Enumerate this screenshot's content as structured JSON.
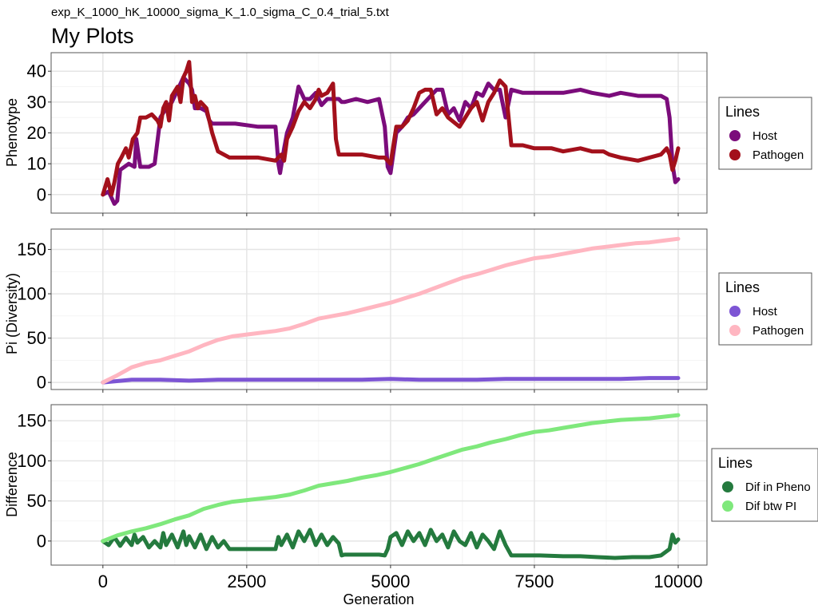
{
  "subtitle": "exp_K_1000_hK_10000_sigma_K_1.0_sigma_C_0.4_trial_5.txt",
  "title": "My Plots",
  "xlabel": "Generation",
  "chart_data": [
    {
      "type": "line",
      "ylabel": "Phenotype",
      "xlim": [
        -900,
        10500
      ],
      "ylim": [
        -6,
        46
      ],
      "xticks": [
        0,
        2500,
        5000,
        7500,
        10000
      ],
      "yticks": [
        0,
        10,
        20,
        30,
        40
      ],
      "ytick_labels": [
        "0",
        "10",
        "20",
        "30",
        "40"
      ],
      "legend": {
        "title": "Lines",
        "position": "right"
      },
      "series": [
        {
          "name": "Host",
          "color": "#7b0c7b",
          "x": [
            0,
            100,
            200,
            250,
            300,
            450,
            550,
            580,
            650,
            800,
            900,
            1000,
            1100,
            1200,
            1300,
            1400,
            1500,
            1550,
            1600,
            1700,
            1800,
            1850,
            1900,
            2000,
            2300,
            2700,
            3000,
            3050,
            3080,
            3150,
            3200,
            3300,
            3350,
            3400,
            3500,
            3600,
            3700,
            3800,
            3900,
            4000,
            4100,
            4150,
            4200,
            4400,
            4600,
            4800,
            4900,
            4950,
            5000,
            5100,
            5200,
            5300,
            5400,
            5500,
            5600,
            5700,
            5800,
            5900,
            6000,
            6100,
            6200,
            6300,
            6400,
            6500,
            6600,
            6700,
            6800,
            6900,
            7000,
            7100,
            7300,
            7500,
            7800,
            8000,
            8300,
            8500,
            8800,
            9000,
            9300,
            9500,
            9700,
            9800,
            9850,
            9900,
            9950,
            10000
          ],
          "y": [
            0,
            1,
            -3,
            -2,
            8,
            10,
            9,
            18,
            9,
            9,
            10,
            25,
            28,
            30,
            34,
            38,
            36,
            34,
            28,
            28,
            27,
            24,
            23,
            23,
            23,
            22,
            22,
            10,
            7,
            15,
            20,
            25,
            30,
            35,
            31,
            31,
            33,
            29,
            31,
            31,
            31,
            30,
            30,
            31,
            30,
            31,
            22,
            9,
            7,
            20,
            22,
            25,
            26,
            28,
            30,
            32,
            34,
            34,
            26,
            28,
            24,
            30,
            28,
            33,
            32,
            36,
            34,
            34,
            25,
            34,
            33,
            33,
            33,
            33,
            34,
            33,
            32,
            33,
            32,
            32,
            32,
            31,
            25,
            10,
            4,
            5
          ]
        },
        {
          "name": "Pathogen",
          "color": "#a3101b",
          "x": [
            0,
            80,
            150,
            200,
            260,
            320,
            400,
            450,
            520,
            600,
            650,
            750,
            850,
            950,
            1000,
            1050,
            1100,
            1150,
            1200,
            1300,
            1350,
            1400,
            1450,
            1500,
            1550,
            1600,
            1650,
            1700,
            1800,
            1900,
            2000,
            2200,
            2400,
            2700,
            3000,
            3100,
            3150,
            3200,
            3300,
            3400,
            3500,
            3600,
            3700,
            3750,
            3800,
            3900,
            4000,
            4050,
            4100,
            4200,
            4500,
            4800,
            4900,
            4950,
            5000,
            5100,
            5200,
            5300,
            5400,
            5500,
            5600,
            5700,
            5800,
            5900,
            6000,
            6200,
            6400,
            6500,
            6600,
            6700,
            6800,
            6900,
            7000,
            7100,
            7300,
            7500,
            7800,
            8000,
            8300,
            8500,
            8700,
            8800,
            9000,
            9300,
            9500,
            9700,
            9800,
            9850,
            9900,
            9950,
            10000
          ],
          "y": [
            0,
            5,
            0,
            4,
            10,
            12,
            15,
            12,
            18,
            20,
            25,
            25,
            26,
            24,
            22,
            28,
            30,
            24,
            32,
            35,
            30,
            38,
            40,
            43,
            30,
            32,
            28,
            30,
            28,
            20,
            14,
            12,
            12,
            12,
            11,
            13,
            11,
            18,
            22,
            27,
            30,
            28,
            31,
            34,
            32,
            33,
            36,
            18,
            13,
            13,
            13,
            12,
            12,
            11,
            10,
            22,
            22,
            24,
            28,
            33,
            34,
            34,
            26,
            28,
            25,
            22,
            28,
            30,
            24,
            30,
            33,
            37,
            35,
            16,
            16,
            15,
            15,
            14,
            15,
            14,
            14,
            13,
            12,
            11,
            12,
            13,
            15,
            13,
            8,
            11,
            15
          ]
        }
      ]
    },
    {
      "type": "line",
      "ylabel": "Pi (Diversity)",
      "xlim": [
        -900,
        10500
      ],
      "ylim": [
        -8,
        173
      ],
      "xticks": [
        0,
        2500,
        5000,
        7500,
        10000
      ],
      "yticks": [
        0,
        50,
        100,
        150
      ],
      "ytick_labels": [
        "0",
        "50",
        "100",
        "150"
      ],
      "legend": {
        "title": "Lines",
        "position": "right"
      },
      "series": [
        {
          "name": "Host",
          "color": "#7d55d4",
          "x": [
            0,
            500,
            1000,
            1500,
            2000,
            2500,
            3000,
            3500,
            4000,
            4500,
            5000,
            5500,
            6000,
            6500,
            7000,
            7500,
            8000,
            8500,
            9000,
            9500,
            10000
          ],
          "y": [
            0,
            3,
            3,
            2,
            3,
            3,
            3,
            3,
            3,
            3,
            4,
            3,
            3,
            3,
            4,
            4,
            4,
            4,
            4,
            5,
            5
          ]
        },
        {
          "name": "Pathogen",
          "color": "#ffb6c1",
          "x": [
            0,
            250,
            500,
            750,
            1000,
            1250,
            1500,
            1750,
            2000,
            2250,
            2500,
            2750,
            3000,
            3250,
            3500,
            3750,
            4000,
            4250,
            4500,
            4750,
            5000,
            5250,
            5500,
            5750,
            6000,
            6250,
            6500,
            6750,
            7000,
            7250,
            7500,
            7750,
            8000,
            8250,
            8500,
            8750,
            9000,
            9250,
            9500,
            9750,
            10000
          ],
          "y": [
            0,
            8,
            17,
            22,
            25,
            30,
            35,
            42,
            48,
            52,
            54,
            56,
            58,
            61,
            66,
            72,
            75,
            78,
            82,
            86,
            90,
            95,
            100,
            106,
            112,
            118,
            122,
            127,
            132,
            136,
            140,
            142,
            145,
            148,
            151,
            153,
            155,
            157,
            158,
            160,
            162
          ]
        }
      ]
    },
    {
      "type": "line",
      "ylabel": "Difference",
      "xlim": [
        -900,
        10500
      ],
      "ylim": [
        -30,
        170
      ],
      "xticks": [
        0,
        2500,
        5000,
        7500,
        10000
      ],
      "xtick_labels": [
        "0",
        "2500",
        "5000",
        "7500",
        "10000"
      ],
      "yticks": [
        0,
        50,
        100,
        150
      ],
      "ytick_labels": [
        "0",
        "50",
        "100",
        "150"
      ],
      "legend": {
        "title": "Lines",
        "position": "right"
      },
      "series": [
        {
          "name": "Dif in Pheno",
          "color": "#247a3e",
          "x": [
            0,
            100,
            200,
            300,
            400,
            500,
            550,
            600,
            700,
            800,
            900,
            1000,
            1050,
            1100,
            1200,
            1300,
            1400,
            1450,
            1500,
            1600,
            1700,
            1800,
            1900,
            2000,
            2100,
            2200,
            2300,
            2600,
            3000,
            3050,
            3100,
            3200,
            3300,
            3400,
            3500,
            3600,
            3700,
            3800,
            3900,
            4000,
            4100,
            4150,
            4200,
            4500,
            4800,
            4900,
            4950,
            5000,
            5100,
            5200,
            5300,
            5400,
            5500,
            5600,
            5700,
            5800,
            5900,
            6000,
            6100,
            6200,
            6300,
            6400,
            6500,
            6600,
            6700,
            6800,
            6900,
            7000,
            7100,
            7300,
            7600,
            8000,
            8300,
            8600,
            8900,
            9200,
            9500,
            9700,
            9850,
            9900,
            9950,
            10000
          ],
          "y": [
            0,
            -5,
            5,
            -6,
            4,
            -5,
            8,
            -2,
            5,
            -8,
            0,
            -8,
            10,
            -5,
            8,
            -8,
            12,
            -5,
            6,
            -8,
            8,
            -10,
            5,
            -8,
            0,
            -10,
            -10,
            -10,
            -10,
            5,
            -5,
            8,
            -8,
            12,
            0,
            14,
            -5,
            8,
            -5,
            5,
            -3,
            -18,
            -17,
            -17,
            -17,
            -18,
            -10,
            5,
            10,
            -5,
            12,
            0,
            10,
            -5,
            14,
            0,
            8,
            -8,
            12,
            0,
            -5,
            10,
            -8,
            8,
            0,
            -10,
            12,
            -5,
            -18,
            -18,
            -18,
            -19,
            -19,
            -20,
            -21,
            -20,
            -20,
            -18,
            -10,
            8,
            -2,
            2
          ]
        },
        {
          "name": "Dif btw PI",
          "color": "#7fe87c",
          "x": [
            0,
            250,
            500,
            750,
            1000,
            1250,
            1500,
            1750,
            2000,
            2250,
            2500,
            2750,
            3000,
            3250,
            3500,
            3750,
            4000,
            4250,
            4500,
            4750,
            5000,
            5250,
            5500,
            5750,
            6000,
            6250,
            6500,
            6750,
            7000,
            7250,
            7500,
            7750,
            8000,
            8250,
            8500,
            8750,
            9000,
            9250,
            9500,
            9750,
            10000
          ],
          "y": [
            0,
            7,
            12,
            16,
            21,
            27,
            32,
            40,
            45,
            49,
            51,
            53,
            55,
            58,
            63,
            69,
            72,
            75,
            79,
            82,
            86,
            91,
            96,
            102,
            108,
            114,
            118,
            123,
            127,
            132,
            136,
            138,
            141,
            144,
            147,
            149,
            151,
            152,
            153,
            155,
            157
          ]
        }
      ]
    }
  ]
}
